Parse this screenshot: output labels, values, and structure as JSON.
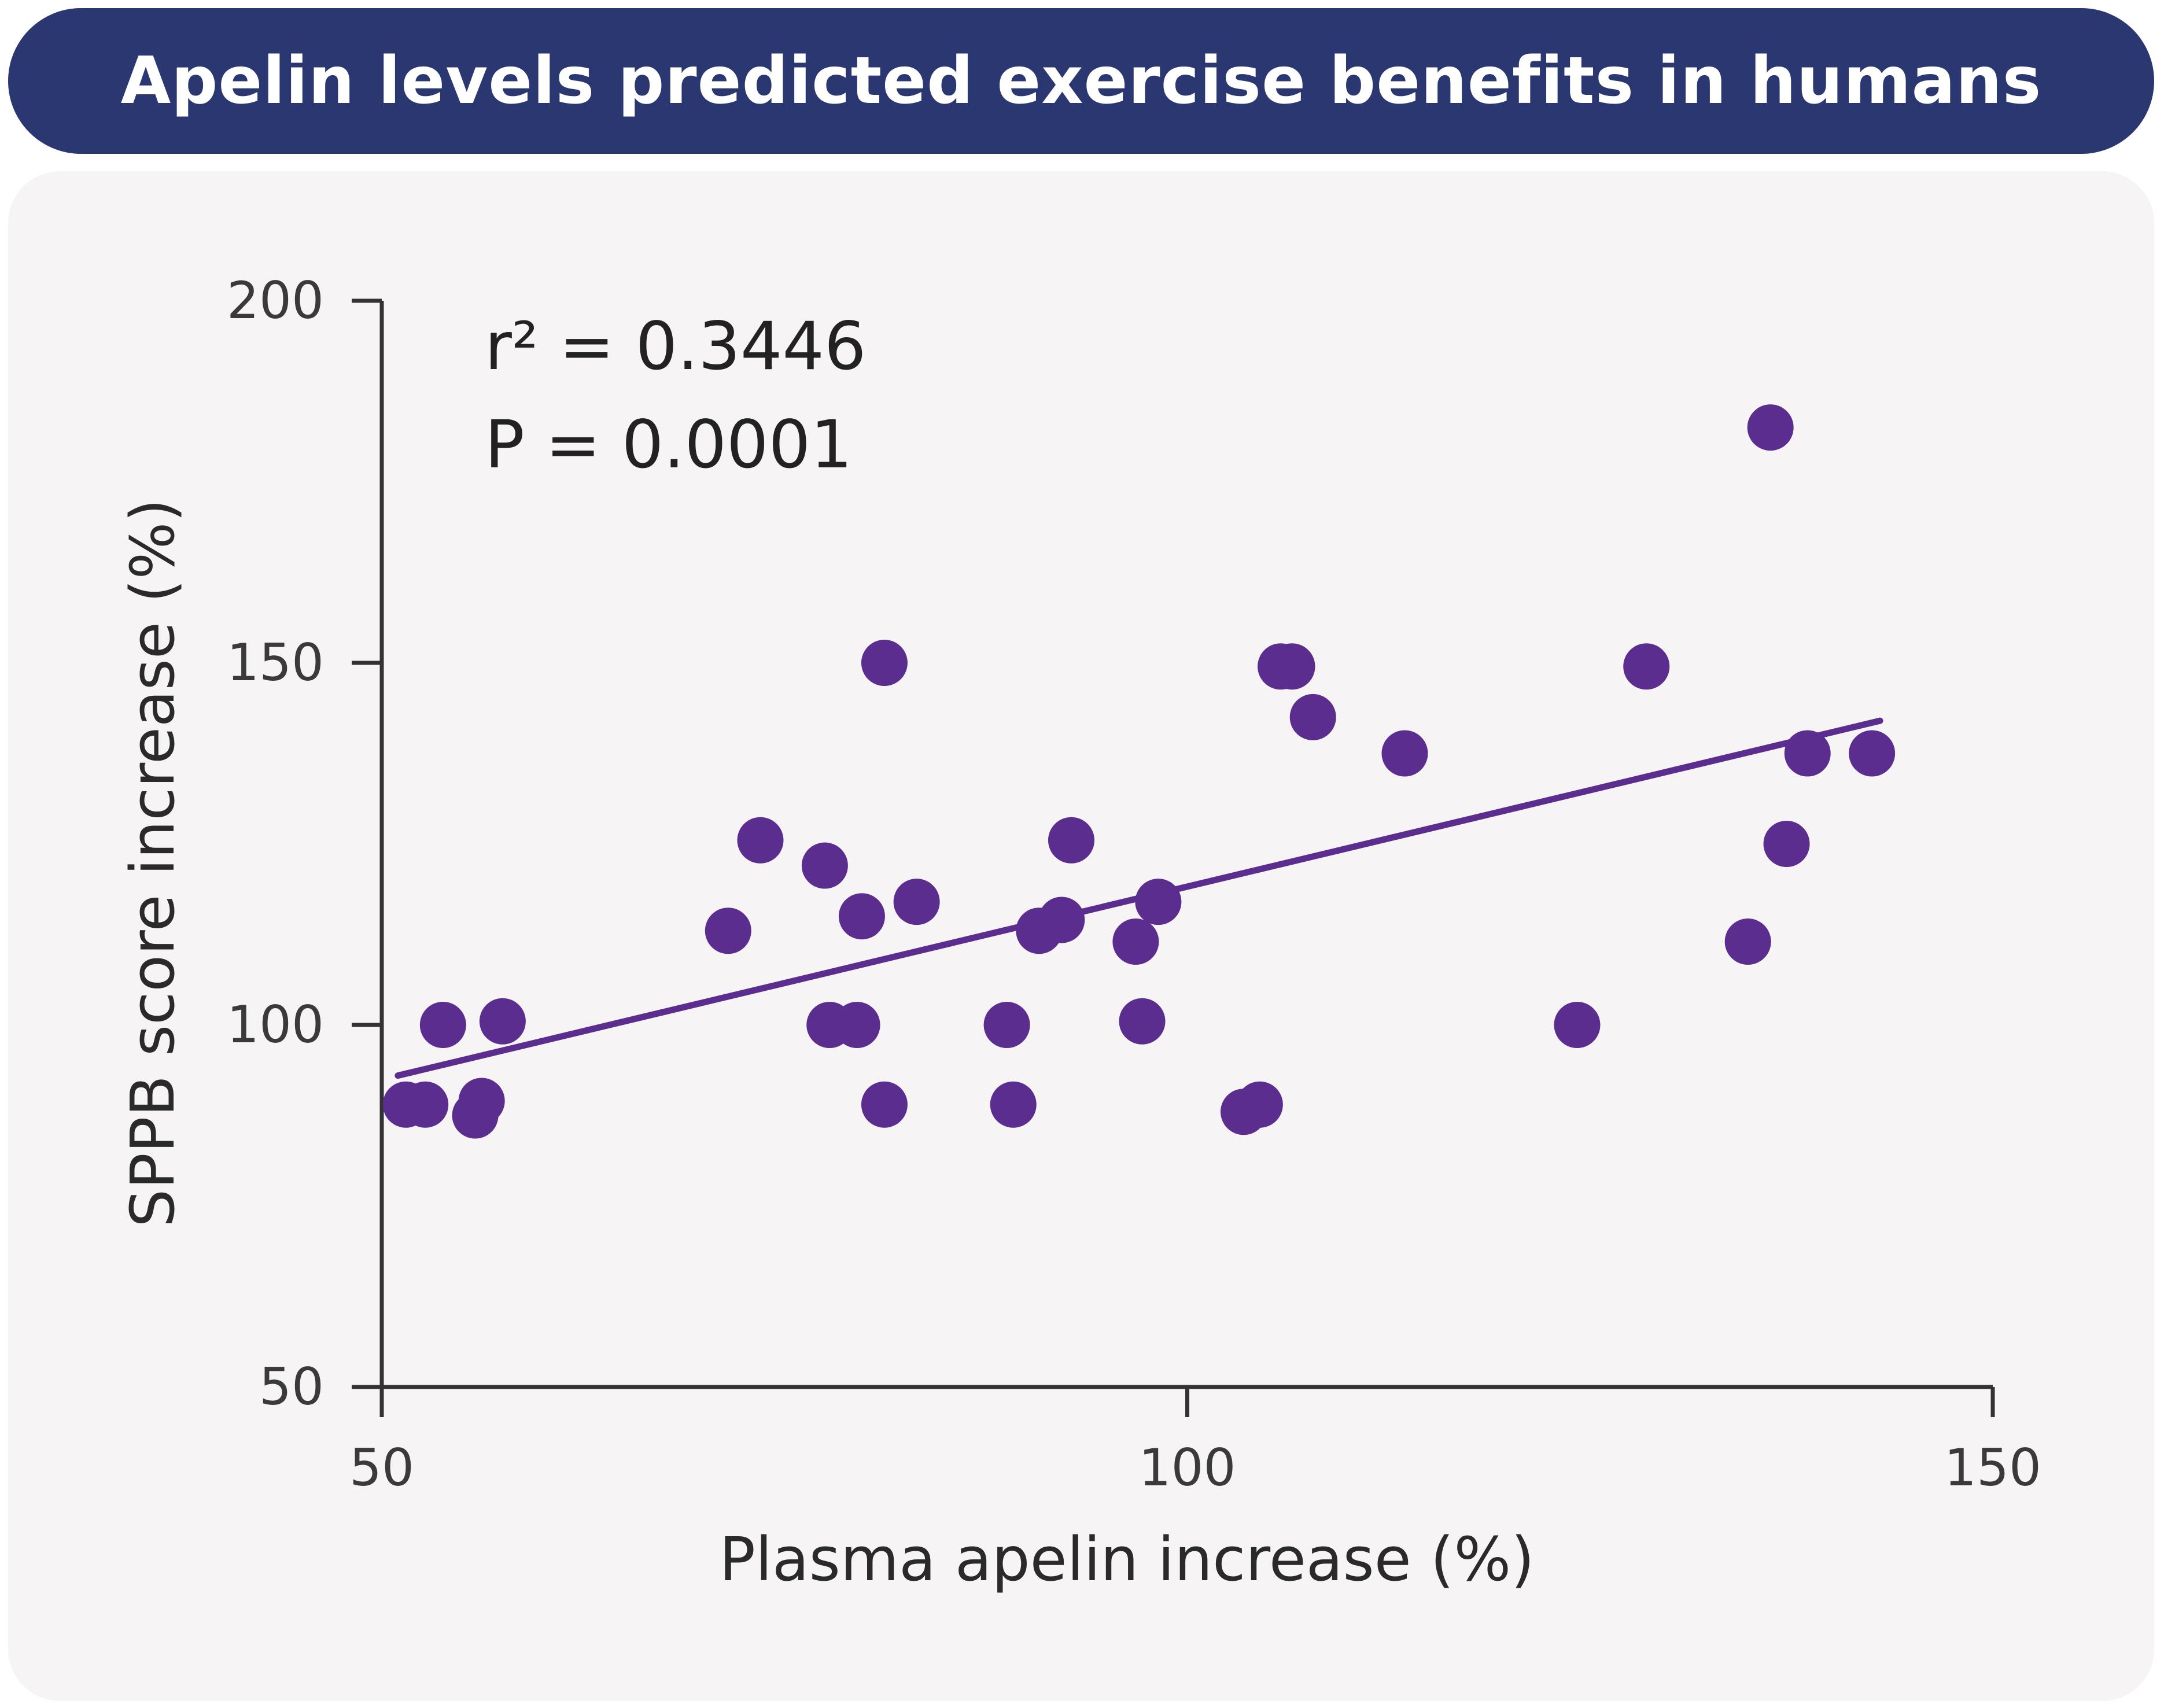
{
  "banner": {
    "title": "Apelin levels predicted exercise benefits in humans"
  },
  "colors": {
    "banner": "#2b3770",
    "panel": "#f6f4f5",
    "points": "#5b2d8e",
    "trendline": "#5b2d8e",
    "axis": "#333333"
  },
  "chart_data": {
    "type": "scatter",
    "title": "",
    "xlabel": "Plasma apelin increase (%)",
    "ylabel": "SPPB score increase (%)",
    "xlim": [
      50,
      150
    ],
    "ylim": [
      50,
      200
    ],
    "xticks": [
      50,
      100,
      150
    ],
    "yticks": [
      50,
      100,
      150,
      200
    ],
    "grid": false,
    "annotations": {
      "r2": "r² = 0.3446",
      "p": "P = 0.0001"
    },
    "trendline": {
      "x": [
        51,
        143
      ],
      "y": [
        93,
        142
      ]
    },
    "points": [
      {
        "x": 51.5,
        "y": 89
      },
      {
        "x": 52.7,
        "y": 89
      },
      {
        "x": 53.8,
        "y": 100
      },
      {
        "x": 55.8,
        "y": 87.5
      },
      {
        "x": 56.2,
        "y": 89.5
      },
      {
        "x": 57.5,
        "y": 100.5
      },
      {
        "x": 71.5,
        "y": 113
      },
      {
        "x": 73.5,
        "y": 125.5
      },
      {
        "x": 77.5,
        "y": 122
      },
      {
        "x": 77.8,
        "y": 100
      },
      {
        "x": 79.5,
        "y": 100
      },
      {
        "x": 79.8,
        "y": 115
      },
      {
        "x": 81.2,
        "y": 150
      },
      {
        "x": 81.2,
        "y": 89
      },
      {
        "x": 83.2,
        "y": 117
      },
      {
        "x": 88.8,
        "y": 100
      },
      {
        "x": 89.2,
        "y": 89
      },
      {
        "x": 90.8,
        "y": 113
      },
      {
        "x": 92.2,
        "y": 114.5
      },
      {
        "x": 92.8,
        "y": 125.5
      },
      {
        "x": 96.8,
        "y": 111.5
      },
      {
        "x": 97.2,
        "y": 100.5
      },
      {
        "x": 98.2,
        "y": 117
      },
      {
        "x": 103.5,
        "y": 88
      },
      {
        "x": 104.5,
        "y": 89
      },
      {
        "x": 105.8,
        "y": 149.5
      },
      {
        "x": 106.5,
        "y": 149.5
      },
      {
        "x": 107.8,
        "y": 142.5
      },
      {
        "x": 113.5,
        "y": 137.5
      },
      {
        "x": 124.2,
        "y": 100
      },
      {
        "x": 128.5,
        "y": 149.5
      },
      {
        "x": 134.8,
        "y": 111.5
      },
      {
        "x": 136.2,
        "y": 182.5
      },
      {
        "x": 137.2,
        "y": 125
      },
      {
        "x": 138.5,
        "y": 137.5
      },
      {
        "x": 142.5,
        "y": 137.5
      }
    ]
  }
}
